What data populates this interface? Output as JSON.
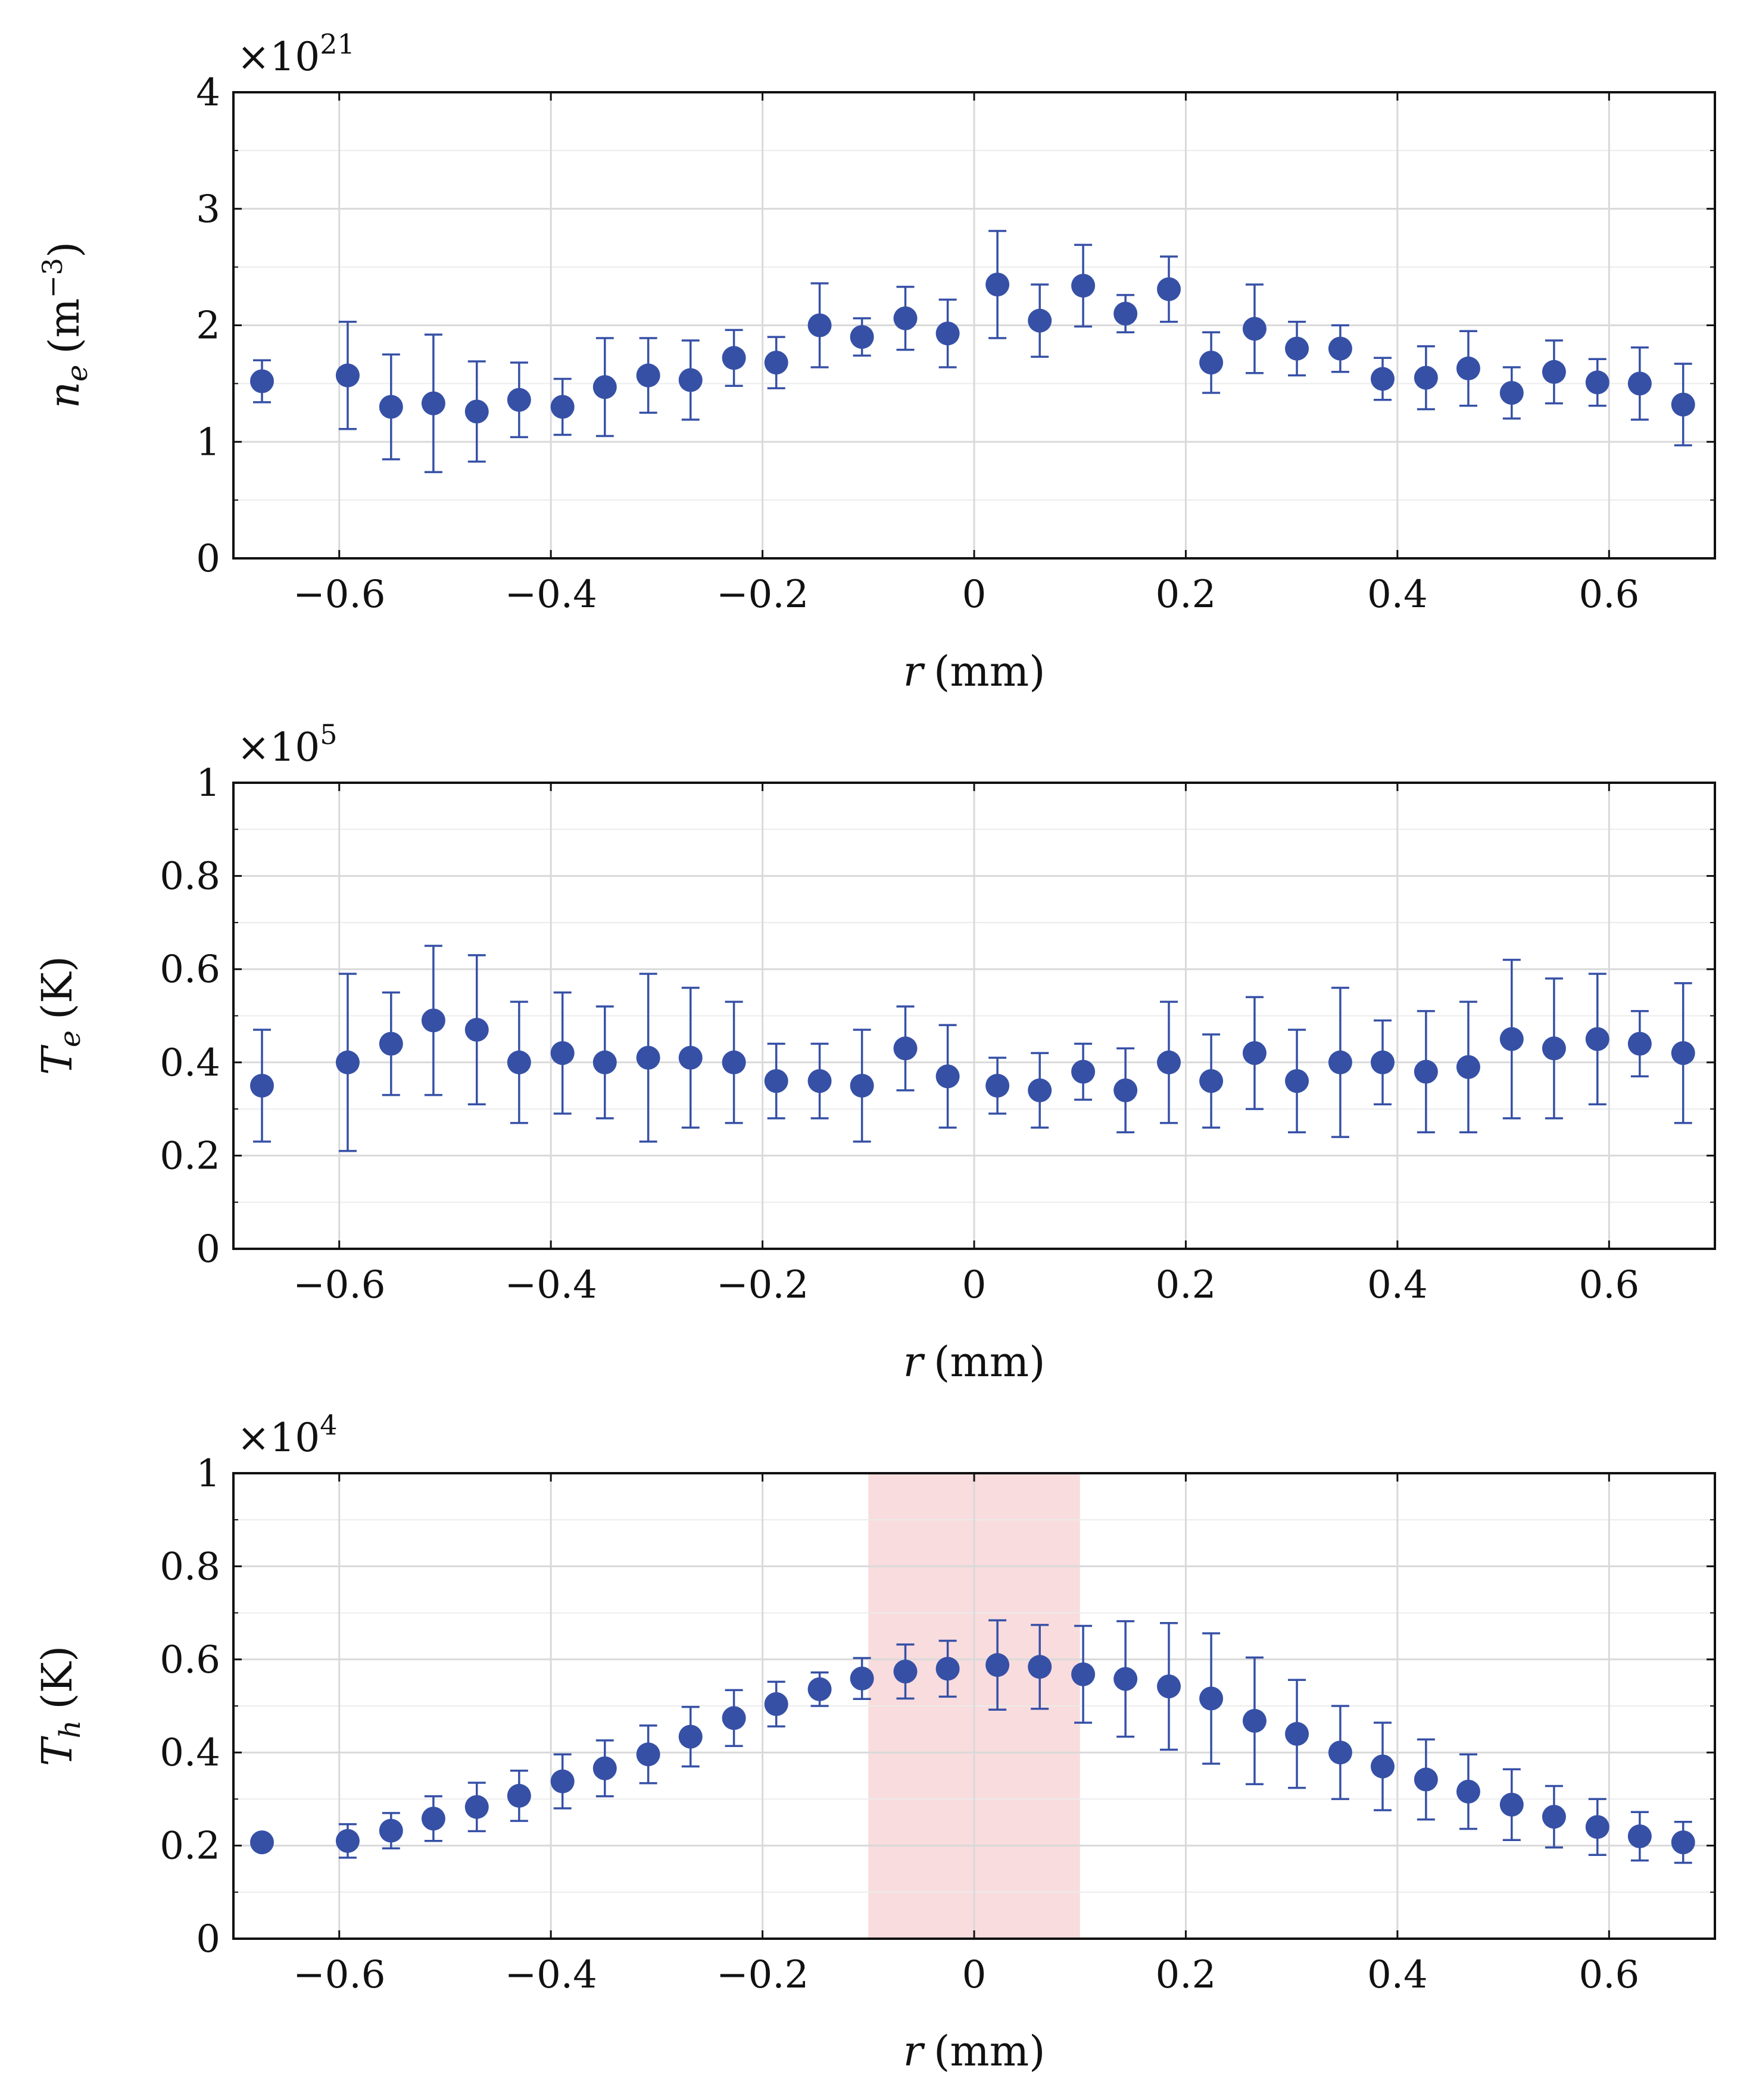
{
  "figure": {
    "colors": {
      "marker": "#3650a6",
      "errorbar": "#3650a6",
      "grid_major": "#d9d9d9",
      "grid_minor": "#ececec",
      "frame": "#111111",
      "highlight": "#f5c4c6"
    }
  },
  "chart_data": [
    {
      "type": "scatter",
      "title": "",
      "xlabel": "r (mm)",
      "xlabel_var": "r",
      "xlabel_unit": "(mm)",
      "ylabel_main": "n",
      "ylabel_sub": "e",
      "ylabel_unit_pre": "(m",
      "ylabel_unit_sup": "−3",
      "ylabel_unit_post": ")",
      "exponent_prefix": "×10",
      "exponent_power": "21",
      "xlim": [
        -0.7,
        0.7
      ],
      "ylim": [
        0,
        4
      ],
      "xticks": [
        -0.6,
        -0.4,
        -0.2,
        0,
        0.2,
        0.4,
        0.6
      ],
      "xtick_labels": [
        "−0.6",
        "−0.4",
        "−0.2",
        "0",
        "0.2",
        "0.4",
        "0.6"
      ],
      "yticks": [
        0,
        1,
        2,
        3,
        4
      ],
      "ytick_labels": [
        "0",
        "1",
        "2",
        "3",
        "4"
      ],
      "yminor": [
        0.5,
        1.5,
        2.5,
        3.5
      ],
      "grid": true,
      "highlight_x": null,
      "series": [
        {
          "name": "n_e",
          "x": [
            -0.673,
            -0.592,
            -0.551,
            -0.511,
            -0.47,
            -0.43,
            -0.389,
            -0.349,
            -0.308,
            -0.268,
            -0.227,
            -0.187,
            -0.146,
            -0.106,
            -0.065,
            -0.025,
            0.022,
            0.062,
            0.103,
            0.143,
            0.184,
            0.224,
            0.265,
            0.305,
            0.346,
            0.386,
            0.427,
            0.467,
            0.508,
            0.548,
            0.589,
            0.629,
            0.67
          ],
          "y": [
            1.52,
            1.57,
            1.3,
            1.33,
            1.26,
            1.36,
            1.3,
            1.47,
            1.57,
            1.53,
            1.72,
            1.68,
            2.0,
            1.9,
            2.06,
            1.93,
            2.35,
            2.04,
            2.34,
            2.1,
            2.31,
            1.68,
            1.97,
            1.8,
            1.8,
            1.54,
            1.55,
            1.63,
            1.42,
            1.6,
            1.51,
            1.5,
            1.32
          ],
          "err": [
            0.18,
            0.46,
            0.45,
            0.59,
            0.43,
            0.32,
            0.24,
            0.42,
            0.32,
            0.34,
            0.24,
            0.22,
            0.36,
            0.16,
            0.27,
            0.29,
            0.46,
            0.31,
            0.35,
            0.16,
            0.28,
            0.26,
            0.38,
            0.23,
            0.2,
            0.18,
            0.27,
            0.32,
            0.22,
            0.27,
            0.2,
            0.31,
            0.35
          ]
        }
      ]
    },
    {
      "type": "scatter",
      "title": "",
      "xlabel": "r (mm)",
      "xlabel_var": "r",
      "xlabel_unit": "(mm)",
      "ylabel_main": "T",
      "ylabel_sub": "e",
      "ylabel_unit_pre": "(K)",
      "ylabel_unit_sup": "",
      "ylabel_unit_post": "",
      "exponent_prefix": "×10",
      "exponent_power": "5",
      "xlim": [
        -0.7,
        0.7
      ],
      "ylim": [
        0,
        1
      ],
      "xticks": [
        -0.6,
        -0.4,
        -0.2,
        0,
        0.2,
        0.4,
        0.6
      ],
      "xtick_labels": [
        "−0.6",
        "−0.4",
        "−0.2",
        "0",
        "0.2",
        "0.4",
        "0.6"
      ],
      "yticks": [
        0,
        0.2,
        0.4,
        0.6,
        0.8,
        1
      ],
      "ytick_labels": [
        "0",
        "0.2",
        "0.4",
        "0.6",
        "0.8",
        "1"
      ],
      "yminor": [
        0.1,
        0.3,
        0.5,
        0.7,
        0.9
      ],
      "grid": true,
      "highlight_x": null,
      "series": [
        {
          "name": "T_e",
          "x": [
            -0.673,
            -0.592,
            -0.551,
            -0.511,
            -0.47,
            -0.43,
            -0.389,
            -0.349,
            -0.308,
            -0.268,
            -0.227,
            -0.187,
            -0.146,
            -0.106,
            -0.065,
            -0.025,
            0.022,
            0.062,
            0.103,
            0.143,
            0.184,
            0.224,
            0.265,
            0.305,
            0.346,
            0.386,
            0.427,
            0.467,
            0.508,
            0.548,
            0.589,
            0.629,
            0.67
          ],
          "y": [
            0.35,
            0.4,
            0.44,
            0.49,
            0.47,
            0.4,
            0.42,
            0.4,
            0.41,
            0.41,
            0.4,
            0.36,
            0.36,
            0.35,
            0.43,
            0.37,
            0.35,
            0.34,
            0.38,
            0.34,
            0.4,
            0.36,
            0.42,
            0.36,
            0.4,
            0.4,
            0.38,
            0.39,
            0.45,
            0.43,
            0.45,
            0.44,
            0.42
          ],
          "err": [
            0.12,
            0.19,
            0.11,
            0.16,
            0.16,
            0.13,
            0.13,
            0.12,
            0.18,
            0.15,
            0.13,
            0.08,
            0.08,
            0.12,
            0.09,
            0.11,
            0.06,
            0.08,
            0.06,
            0.09,
            0.13,
            0.1,
            0.12,
            0.11,
            0.16,
            0.09,
            0.13,
            0.14,
            0.17,
            0.15,
            0.14,
            0.07,
            0.15
          ]
        }
      ]
    },
    {
      "type": "scatter",
      "title": "",
      "xlabel": "r (mm)",
      "xlabel_var": "r",
      "xlabel_unit": "(mm)",
      "ylabel_main": "T",
      "ylabel_sub": "h",
      "ylabel_unit_pre": "(K)",
      "ylabel_unit_sup": "",
      "ylabel_unit_post": "",
      "exponent_prefix": "×10",
      "exponent_power": "4",
      "xlim": [
        -0.7,
        0.7
      ],
      "ylim": [
        0,
        1
      ],
      "xticks": [
        -0.6,
        -0.4,
        -0.2,
        0,
        0.2,
        0.4,
        0.6
      ],
      "xtick_labels": [
        "−0.6",
        "−0.4",
        "−0.2",
        "0",
        "0.2",
        "0.4",
        "0.6"
      ],
      "yticks": [
        0,
        0.2,
        0.4,
        0.6,
        0.8,
        1
      ],
      "ytick_labels": [
        "0",
        "0.2",
        "0.4",
        "0.6",
        "0.8",
        "1"
      ],
      "yminor": [
        0.1,
        0.3,
        0.5,
        0.7,
        0.9
      ],
      "grid": true,
      "highlight_x": [
        -0.1,
        0.1
      ],
      "series": [
        {
          "name": "T_h",
          "x": [
            -0.673,
            -0.592,
            -0.551,
            -0.511,
            -0.47,
            -0.43,
            -0.389,
            -0.349,
            -0.308,
            -0.268,
            -0.227,
            -0.187,
            -0.146,
            -0.106,
            -0.065,
            -0.025,
            0.022,
            0.062,
            0.103,
            0.143,
            0.184,
            0.224,
            0.265,
            0.305,
            0.346,
            0.386,
            0.427,
            0.467,
            0.508,
            0.548,
            0.589,
            0.629,
            0.67
          ],
          "y": [
            0.207,
            0.21,
            0.232,
            0.258,
            0.283,
            0.307,
            0.338,
            0.366,
            0.396,
            0.434,
            0.474,
            0.504,
            0.536,
            0.559,
            0.574,
            0.58,
            0.588,
            0.584,
            0.568,
            0.558,
            0.542,
            0.516,
            0.468,
            0.44,
            0.4,
            0.37,
            0.342,
            0.316,
            0.288,
            0.262,
            0.24,
            0.22,
            0.207
          ],
          "err": [
            0.0,
            0.036,
            0.038,
            0.048,
            0.052,
            0.054,
            0.058,
            0.06,
            0.062,
            0.064,
            0.06,
            0.048,
            0.036,
            0.044,
            0.058,
            0.06,
            0.096,
            0.09,
            0.104,
            0.124,
            0.136,
            0.14,
            0.136,
            0.116,
            0.1,
            0.094,
            0.086,
            0.08,
            0.076,
            0.066,
            0.06,
            0.052,
            0.044
          ]
        }
      ]
    }
  ]
}
